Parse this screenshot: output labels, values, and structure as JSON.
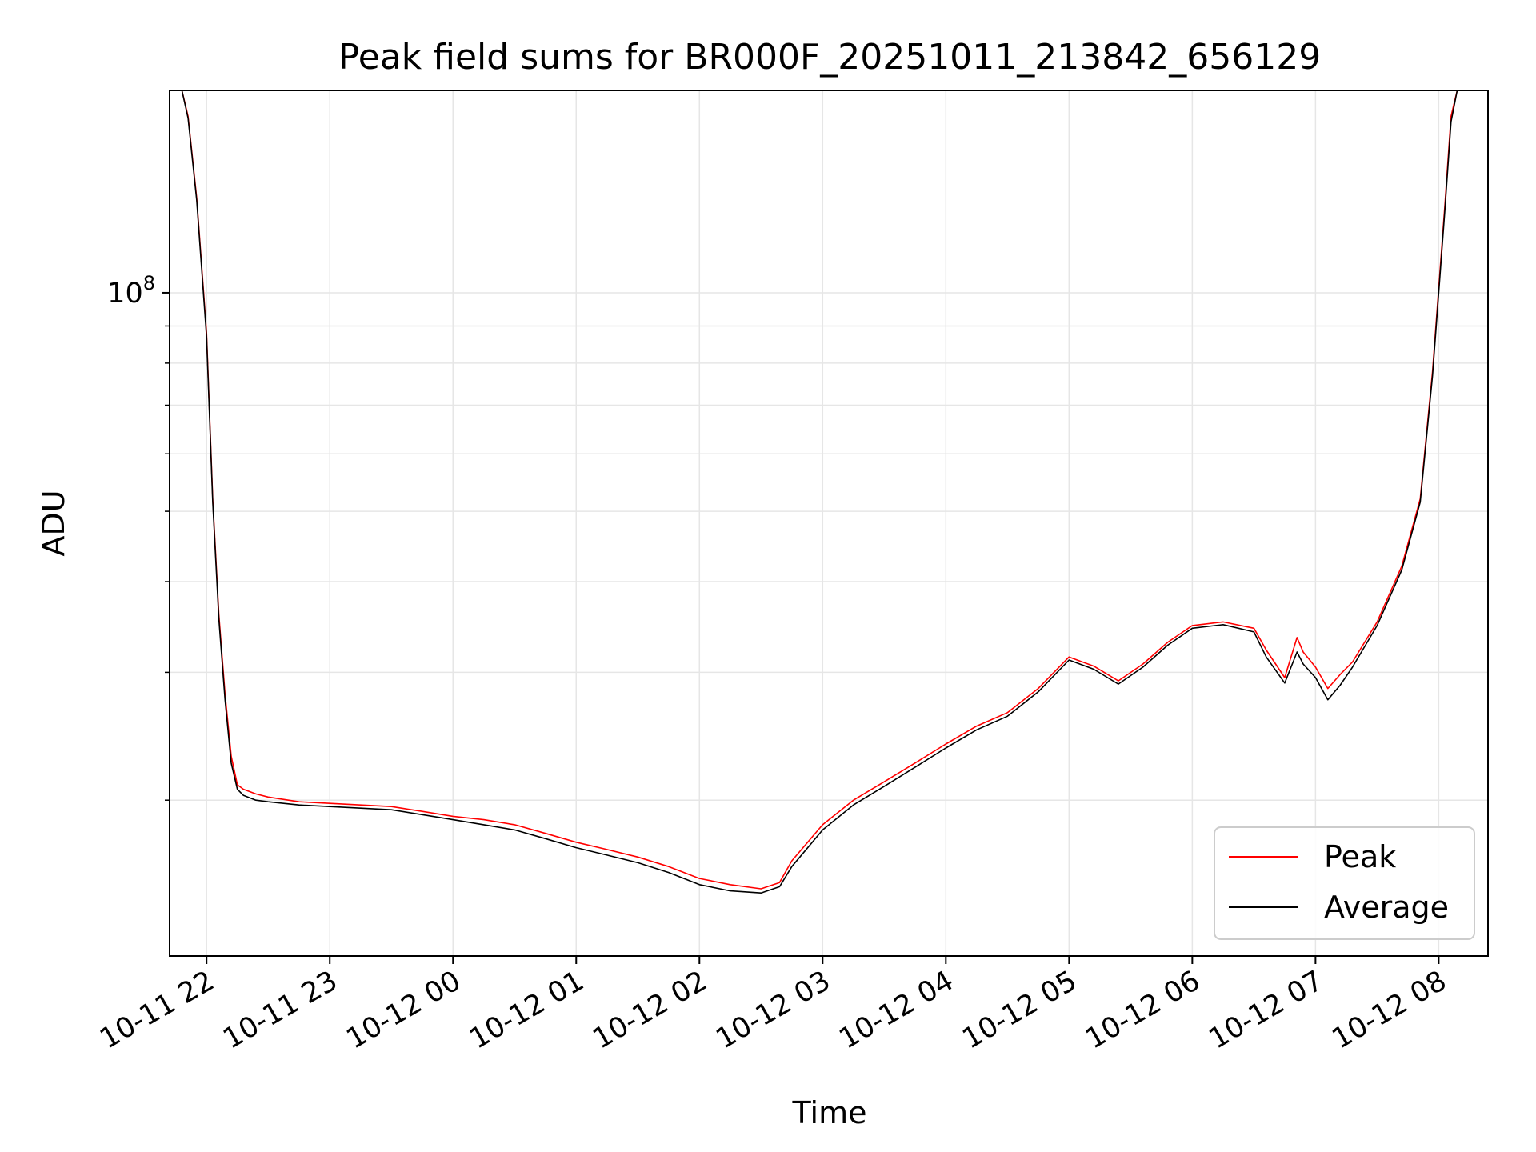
{
  "chart_data": {
    "type": "line",
    "title": "Peak field sums for BR000F_20251011_213842_656129",
    "xlabel": "Time",
    "ylabel": "ADU",
    "y_scale": "log",
    "ylim": [
      12200000,
      190000000
    ],
    "xlim_hours": [
      -2.3,
      8.4
    ],
    "grid": true,
    "legend_position": "lower-right",
    "x_ticks": [
      {
        "hour": -2,
        "label": "10-11 22"
      },
      {
        "hour": -1,
        "label": "10-11 23"
      },
      {
        "hour": 0,
        "label": "10-12 00"
      },
      {
        "hour": 1,
        "label": "10-12 01"
      },
      {
        "hour": 2,
        "label": "10-12 02"
      },
      {
        "hour": 3,
        "label": "10-12 03"
      },
      {
        "hour": 4,
        "label": "10-12 04"
      },
      {
        "hour": 5,
        "label": "10-12 05"
      },
      {
        "hour": 6,
        "label": "10-12 06"
      },
      {
        "hour": 7,
        "label": "10-12 07"
      },
      {
        "hour": 8,
        "label": "10-12 08"
      }
    ],
    "y_major_ticks": [
      {
        "value": 100000000,
        "base": "10",
        "exponent": "8"
      }
    ],
    "y_minor_ticks": [
      20000000,
      30000000,
      40000000,
      50000000,
      60000000,
      70000000,
      80000000,
      90000000,
      200000000
    ],
    "x_hours": [
      -2.2,
      -2.15,
      -2.08,
      -2.0,
      -1.95,
      -1.9,
      -1.85,
      -1.8,
      -1.75,
      -1.7,
      -1.6,
      -1.5,
      -1.25,
      -1.0,
      -0.75,
      -0.5,
      -0.25,
      0.0,
      0.25,
      0.5,
      0.75,
      1.0,
      1.25,
      1.5,
      1.75,
      2.0,
      2.25,
      2.5,
      2.65,
      2.75,
      3.0,
      3.25,
      3.5,
      3.75,
      4.0,
      4.25,
      4.5,
      4.75,
      5.0,
      5.2,
      5.4,
      5.6,
      5.8,
      6.0,
      6.25,
      6.5,
      6.6,
      6.75,
      6.85,
      6.9,
      7.0,
      7.1,
      7.2,
      7.3,
      7.5,
      7.7,
      7.85,
      7.95,
      8.05,
      8.1,
      8.15,
      8.2
    ],
    "series": [
      {
        "name": "Peak",
        "color": "#ff0000",
        "values": [
          190000000,
          175000000,
          135000000,
          88000000,
          52000000,
          36000000,
          28000000,
          23000000,
          21000000,
          20700000,
          20400000,
          20200000,
          19900000,
          19800000,
          19700000,
          19600000,
          19300000,
          19000000,
          18800000,
          18500000,
          18000000,
          17500000,
          17100000,
          16700000,
          16200000,
          15600000,
          15300000,
          15100000,
          15400000,
          16500000,
          18500000,
          20000000,
          21200000,
          22500000,
          23900000,
          25300000,
          26400000,
          28500000,
          31500000,
          30600000,
          29200000,
          30800000,
          33000000,
          34800000,
          35200000,
          34500000,
          32200000,
          29500000,
          33500000,
          32000000,
          30500000,
          28500000,
          29800000,
          31000000,
          35200000,
          42000000,
          52000000,
          78000000,
          132000000,
          175000000,
          190000000,
          190000000
        ]
      },
      {
        "name": "Average",
        "color": "#000000",
        "values": [
          190000000,
          174000000,
          134000000,
          87000000,
          51500000,
          35500000,
          27500000,
          22500000,
          20700000,
          20300000,
          20000000,
          19900000,
          19700000,
          19600000,
          19500000,
          19400000,
          19100000,
          18800000,
          18500000,
          18200000,
          17700000,
          17200000,
          16800000,
          16400000,
          15900000,
          15300000,
          15000000,
          14900000,
          15200000,
          16200000,
          18200000,
          19700000,
          20900000,
          22200000,
          23600000,
          25000000,
          26100000,
          28200000,
          31200000,
          30300000,
          28900000,
          30500000,
          32700000,
          34500000,
          34900000,
          34100000,
          31500000,
          29000000,
          32000000,
          30800000,
          29500000,
          27500000,
          28800000,
          30500000,
          34800000,
          41500000,
          51500000,
          77000000,
          130000000,
          172000000,
          190000000,
          190000000
        ]
      }
    ]
  }
}
